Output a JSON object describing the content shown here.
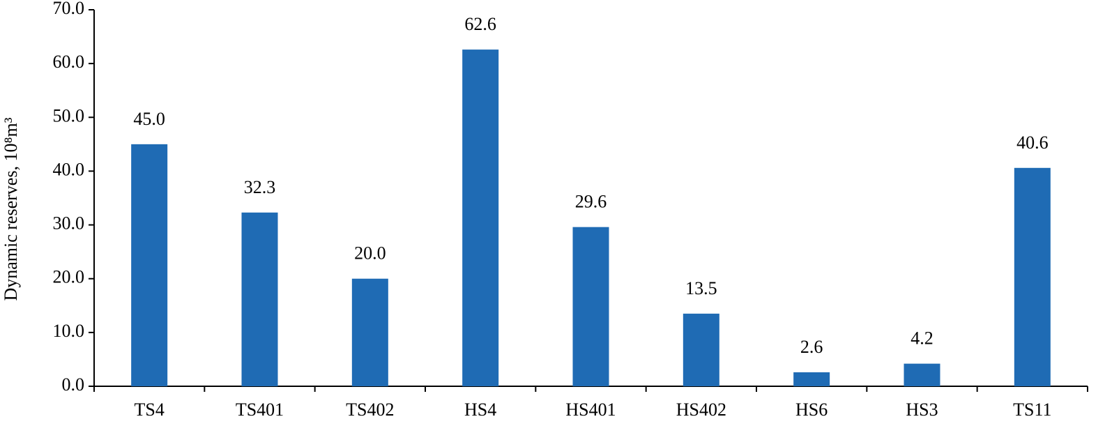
{
  "chart_data": {
    "type": "bar",
    "y_label": "Dynamic reserves, 10⁸m³",
    "categories": [
      "TS4",
      "TS401",
      "TS402",
      "HS4",
      "HS401",
      "HS402",
      "HS6",
      "HS3",
      "TS11"
    ],
    "values": [
      45.0,
      32.3,
      20.0,
      62.6,
      29.6,
      13.5,
      2.6,
      4.2,
      40.6
    ],
    "value_labels": [
      "45.0",
      "32.3",
      "20.0",
      "62.6",
      "29.6",
      "13.5",
      "2.6",
      "4.2",
      "40.6"
    ],
    "color": "#1f6bb4",
    "ylim": [
      0,
      70
    ],
    "yticks": [
      {
        "value": 0,
        "label": "0.0"
      },
      {
        "value": 10,
        "label": "10.0"
      },
      {
        "value": 20,
        "label": "20.0"
      },
      {
        "value": 30,
        "label": "30.0"
      },
      {
        "value": 40,
        "label": "40.0"
      },
      {
        "value": 50,
        "label": "50.0"
      },
      {
        "value": 60,
        "label": "60.0"
      },
      {
        "value": 70,
        "label": "70.0"
      }
    ],
    "grid": false
  }
}
